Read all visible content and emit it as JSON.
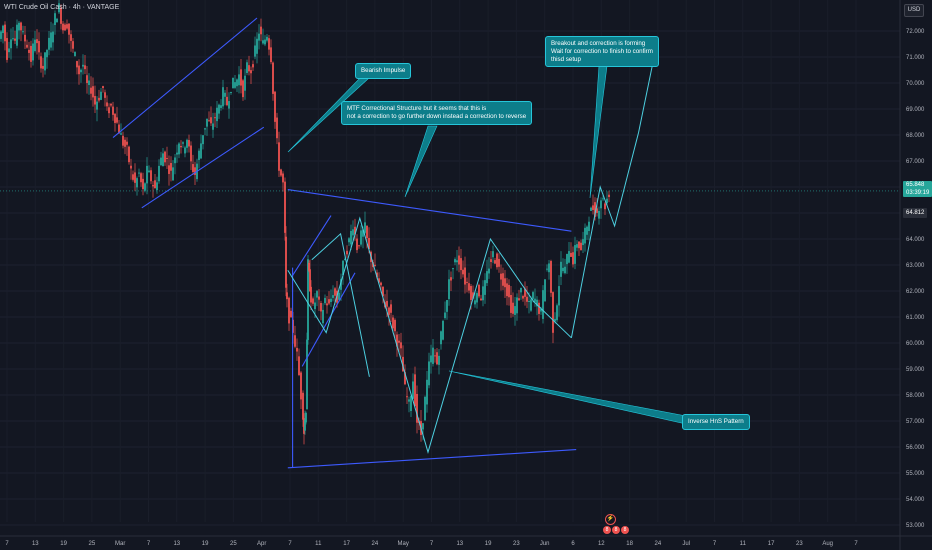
{
  "header": {
    "title": "WTI Crude Oil Cash · 4h · VANTAGE",
    "currency": "USD"
  },
  "annotations": {
    "bearish": "Bearish Impulse",
    "mtf": "MTF Correctional Structure but it seems that this is\nnot a correction to go further down instead a correction to reverse",
    "breakout": "Breakout and correction is forming\nWait for correction to finish to confirm\nthisd setup",
    "inverse": "Inverse HnS Pattern"
  },
  "price_tags": {
    "current": {
      "value": "65.848",
      "countdown": "03:39:19",
      "color": "#26a69a"
    },
    "second": {
      "value": "64.812",
      "color": "#2a2e39"
    }
  },
  "events": {
    "flag_icon": "lightning-icon",
    "markers": [
      "8",
      "8",
      "8"
    ]
  },
  "colors": {
    "up": "#26a69a",
    "down": "#ef5350",
    "structure": "#3d5afe",
    "path": "#4dd0e1",
    "callout": "#0d7d8a"
  },
  "chart_data": {
    "type": "candlestick",
    "timeframe": "4h",
    "symbol": "WTI Crude Oil Cash",
    "y_axis": {
      "ticks": [
        53.0,
        54.0,
        55.0,
        56.0,
        57.0,
        58.0,
        59.0,
        60.0,
        61.0,
        62.0,
        63.0,
        64.0,
        65.0,
        66.0,
        67.0,
        68.0,
        69.0,
        70.0,
        71.0,
        72.0
      ],
      "ylim": [
        52.5,
        73.3
      ]
    },
    "x_axis": {
      "ticks": [
        "7",
        "13",
        "19",
        "25",
        "Mar",
        "7",
        "13",
        "19",
        "25",
        "Apr",
        "7",
        "11",
        "17",
        "24",
        "May",
        "7",
        "13",
        "19",
        "23",
        "Jun",
        "6",
        "12",
        "18",
        "24",
        "Jul",
        "7",
        "11",
        "17",
        "23",
        "Aug",
        "7"
      ]
    },
    "price_path": [
      [
        0,
        71.7
      ],
      [
        4,
        72.2
      ],
      [
        8,
        71.1
      ],
      [
        12,
        71.9
      ],
      [
        16,
        71.6
      ],
      [
        20,
        72.4
      ],
      [
        24,
        71.8
      ],
      [
        28,
        71.5
      ],
      [
        32,
        70.9
      ],
      [
        36,
        71.8
      ],
      [
        40,
        71.0
      ],
      [
        44,
        70.6
      ],
      [
        48,
        71.3
      ],
      [
        52,
        71.8
      ],
      [
        56,
        72.5
      ],
      [
        60,
        72.9
      ],
      [
        64,
        72.1
      ],
      [
        68,
        72.3
      ],
      [
        72,
        71.5
      ],
      [
        76,
        71.0
      ],
      [
        80,
        70.4
      ],
      [
        84,
        70.7
      ],
      [
        88,
        69.9
      ],
      [
        92,
        69.8
      ],
      [
        96,
        69.2
      ],
      [
        100,
        69.5
      ],
      [
        104,
        69.8
      ],
      [
        108,
        68.9
      ],
      [
        112,
        69.1
      ],
      [
        116,
        68.7
      ],
      [
        120,
        68.2
      ],
      [
        124,
        67.7
      ],
      [
        128,
        67.4
      ],
      [
        132,
        66.6
      ],
      [
        136,
        66.1
      ],
      [
        140,
        66.5
      ],
      [
        144,
        65.8
      ],
      [
        148,
        66.6
      ],
      [
        152,
        66.3
      ],
      [
        156,
        65.9
      ],
      [
        160,
        66.8
      ],
      [
        164,
        67.3
      ],
      [
        168,
        67.0
      ],
      [
        172,
        66.5
      ],
      [
        176,
        67.2
      ],
      [
        180,
        67.8
      ],
      [
        184,
        67.5
      ],
      [
        188,
        67.9
      ],
      [
        192,
        66.9
      ],
      [
        196,
        66.5
      ],
      [
        200,
        67.3
      ],
      [
        204,
        68.1
      ],
      [
        208,
        68.6
      ],
      [
        212,
        68.3
      ],
      [
        216,
        68.7
      ],
      [
        220,
        69.1
      ],
      [
        224,
        69.6
      ],
      [
        228,
        69.2
      ],
      [
        232,
        69.9
      ],
      [
        236,
        70.0
      ],
      [
        240,
        70.3
      ],
      [
        244,
        69.7
      ],
      [
        248,
        70.6
      ],
      [
        252,
        70.5
      ],
      [
        256,
        71.2
      ],
      [
        260,
        72.0
      ],
      [
        264,
        71.5
      ],
      [
        268,
        71.9
      ],
      [
        272,
        71.0
      ],
      [
        276,
        68.5
      ],
      [
        280,
        66.8
      ],
      [
        284,
        66.1
      ],
      [
        286,
        62.0
      ],
      [
        290,
        61.0
      ],
      [
        294,
        60.5
      ],
      [
        298,
        59.5
      ],
      [
        302,
        58.0
      ],
      [
        304,
        56.6
      ],
      [
        306,
        57.5
      ],
      [
        308,
        63.0
      ],
      [
        310,
        62.2
      ],
      [
        314,
        61.3
      ],
      [
        318,
        61.9
      ],
      [
        322,
        61.0
      ],
      [
        326,
        61.7
      ],
      [
        330,
        61.4
      ],
      [
        334,
        62.0
      ],
      [
        338,
        61.6
      ],
      [
        342,
        62.5
      ],
      [
        346,
        63.4
      ],
      [
        350,
        63.9
      ],
      [
        354,
        64.6
      ],
      [
        358,
        63.7
      ],
      [
        362,
        64.1
      ],
      [
        366,
        64.4
      ],
      [
        370,
        63.5
      ],
      [
        374,
        63.0
      ],
      [
        378,
        62.5
      ],
      [
        382,
        62.0
      ],
      [
        386,
        61.5
      ],
      [
        390,
        61.3
      ],
      [
        394,
        60.7
      ],
      [
        398,
        60.1
      ],
      [
        402,
        59.6
      ],
      [
        406,
        58.2
      ],
      [
        410,
        57.6
      ],
      [
        414,
        58.6
      ],
      [
        418,
        57.0
      ],
      [
        422,
        56.5
      ],
      [
        426,
        57.8
      ],
      [
        430,
        59.1
      ],
      [
        434,
        59.7
      ],
      [
        438,
        59.2
      ],
      [
        442,
        60.3
      ],
      [
        446,
        61.3
      ],
      [
        450,
        62.3
      ],
      [
        454,
        62.9
      ],
      [
        458,
        63.3
      ],
      [
        462,
        63.0
      ],
      [
        466,
        62.4
      ],
      [
        470,
        62.2
      ],
      [
        474,
        61.6
      ],
      [
        478,
        62.0
      ],
      [
        482,
        61.8
      ],
      [
        486,
        62.2
      ],
      [
        490,
        63.0
      ],
      [
        494,
        63.4
      ],
      [
        498,
        63.1
      ],
      [
        502,
        62.6
      ],
      [
        506,
        62.3
      ],
      [
        510,
        61.7
      ],
      [
        514,
        61.1
      ],
      [
        518,
        61.6
      ],
      [
        522,
        62.0
      ],
      [
        526,
        61.7
      ],
      [
        530,
        61.4
      ],
      [
        534,
        61.8
      ],
      [
        538,
        61.5
      ],
      [
        542,
        61.1
      ],
      [
        546,
        62.6
      ],
      [
        550,
        63.1
      ],
      [
        554,
        60.6
      ],
      [
        558,
        61.6
      ],
      [
        562,
        63.0
      ],
      [
        566,
        62.8
      ],
      [
        570,
        63.7
      ],
      [
        574,
        63.2
      ],
      [
        578,
        63.9
      ],
      [
        582,
        63.6
      ],
      [
        586,
        64.2
      ],
      [
        590,
        64.9
      ],
      [
        594,
        65.2
      ],
      [
        598,
        65.0
      ],
      [
        602,
        65.6
      ],
      [
        606,
        65.3
      ],
      [
        610,
        65.8
      ]
    ],
    "current_price": 65.848,
    "structure_lines": [
      {
        "name": "rising-channel-lower",
        "points": [
          [
            "Mar 7",
            65.2
          ],
          [
            "Apr 2",
            68.3
          ]
        ]
      },
      {
        "name": "rising-channel-upper",
        "points": [
          [
            "Mar 1",
            67.9
          ],
          [
            "Mar 31",
            72.5
          ]
        ]
      },
      {
        "name": "descending-trendline",
        "points": [
          [
            "Apr 7",
            65.9
          ],
          [
            "Jun 4",
            64.3
          ]
        ]
      },
      {
        "name": "rising-support",
        "points": [
          [
            "Apr 7",
            55.2
          ],
          [
            "Jun 5",
            55.9
          ]
        ]
      },
      {
        "name": "small-channel-upper",
        "points": [
          [
            "Apr 8",
            62.6
          ],
          [
            "Apr 16",
            64.9
          ]
        ]
      },
      {
        "name": "small-channel-lower",
        "points": [
          [
            "Apr 10",
            59.1
          ],
          [
            "Apr 21",
            62.7
          ]
        ]
      },
      {
        "name": "vertical-wick",
        "points": [
          [
            "Apr 8",
            55.2
          ],
          [
            "Apr 8",
            62.9
          ]
        ]
      }
    ],
    "projection": [
      [
        "Jun 4",
        60.2
      ],
      [
        "Jun 10",
        66.0
      ],
      [
        "Jun 13",
        64.5
      ],
      [
        "Jun 18",
        68.1
      ],
      [
        "Jun 22",
        71.7
      ]
    ]
  }
}
